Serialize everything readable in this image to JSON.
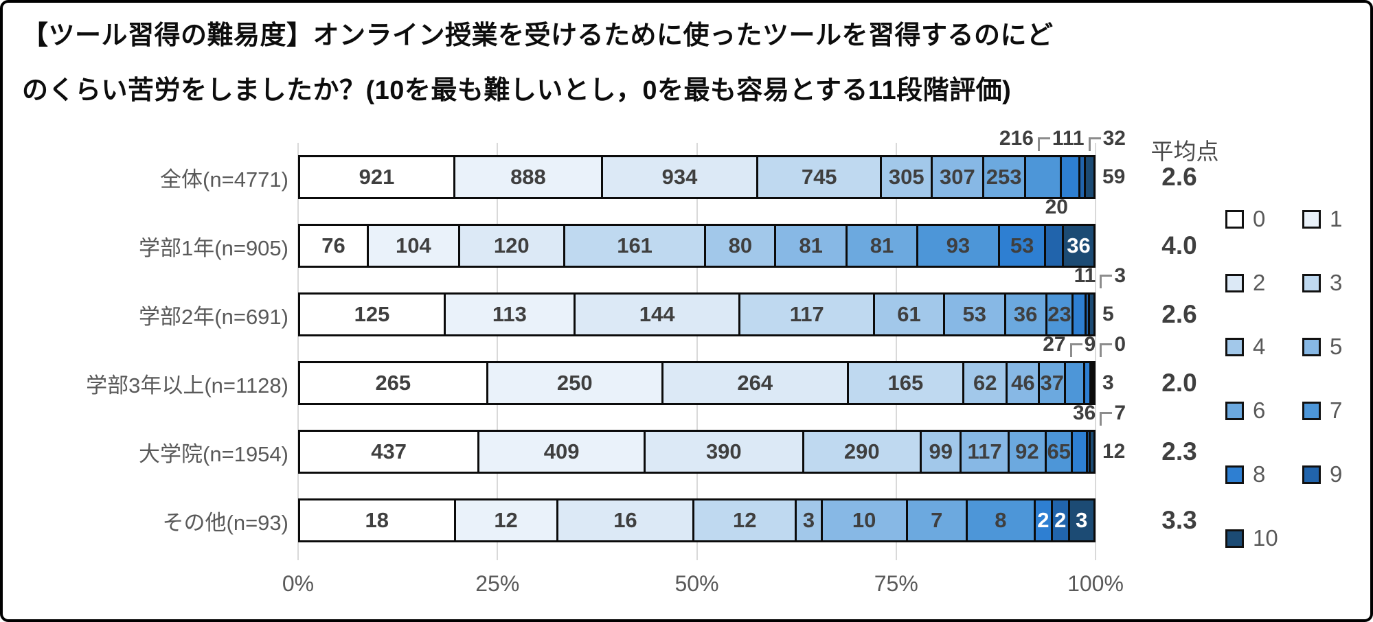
{
  "chart_data": {
    "type": "bar",
    "subtype": "horizontal-100%-stacked",
    "title_line1": "【ツール習得の難易度】オンライン授業を受けるために使ったツールを習得するのにど",
    "title_line2": "のくらい苦労をしましたか？(10を最も難しいとし，0を最も容易とする11段階評価)",
    "averages_header": "平均点",
    "x_ticks": [
      "0%",
      "25%",
      "50%",
      "75%",
      "100%"
    ],
    "xlim": [
      0,
      100
    ],
    "grid": true,
    "grid_color": "#D9D9D9",
    "legend_position": "right",
    "series_labels": [
      "0",
      "1",
      "2",
      "3",
      "4",
      "5",
      "6",
      "7",
      "8",
      "9",
      "10"
    ],
    "colors": [
      "#FFFFFF",
      "#EAF2FA",
      "#DCE9F6",
      "#BFD9F0",
      "#A2C8EA",
      "#87B8E5",
      "#6CA9DF",
      "#4D96D8",
      "#2E7FD2",
      "#2164AC",
      "#1C4B74"
    ],
    "rows": [
      {
        "label": "全体(n=4771)",
        "values": [
          921,
          888,
          934,
          745,
          305,
          307,
          253,
          216,
          111,
          32,
          59
        ],
        "average": "2.6",
        "labels_above": [
          7,
          8,
          9
        ],
        "label_right": 10,
        "white_labels": []
      },
      {
        "label": "学部1年(n=905)",
        "values": [
          76,
          104,
          120,
          161,
          80,
          81,
          81,
          93,
          53,
          20,
          36
        ],
        "average": "4.0",
        "labels_above": [
          9
        ],
        "label_right": null,
        "white_labels": [
          10
        ]
      },
      {
        "label": "学部2年(n=691)",
        "values": [
          125,
          113,
          144,
          117,
          61,
          53,
          36,
          23,
          11,
          3,
          5
        ],
        "average": "2.6",
        "labels_above": [
          8,
          9
        ],
        "label_right": 10,
        "white_labels": []
      },
      {
        "label": "学部3年以上(n=1128)",
        "values": [
          265,
          250,
          264,
          165,
          62,
          46,
          37,
          27,
          9,
          0,
          3
        ],
        "average": "2.0",
        "labels_above": [
          7,
          8,
          9
        ],
        "label_right": 10,
        "white_labels": []
      },
      {
        "label": "大学院(n=1954)",
        "values": [
          437,
          409,
          390,
          290,
          99,
          117,
          92,
          65,
          36,
          7,
          12
        ],
        "average": "2.3",
        "labels_above": [
          8,
          9
        ],
        "label_right": 10,
        "white_labels": []
      },
      {
        "label": "その他(n=93)",
        "values": [
          18,
          12,
          16,
          12,
          3,
          10,
          7,
          8,
          2,
          2,
          3
        ],
        "average": "3.3",
        "labels_above": [],
        "label_right": null,
        "white_labels": [
          8,
          9,
          10
        ]
      }
    ]
  }
}
